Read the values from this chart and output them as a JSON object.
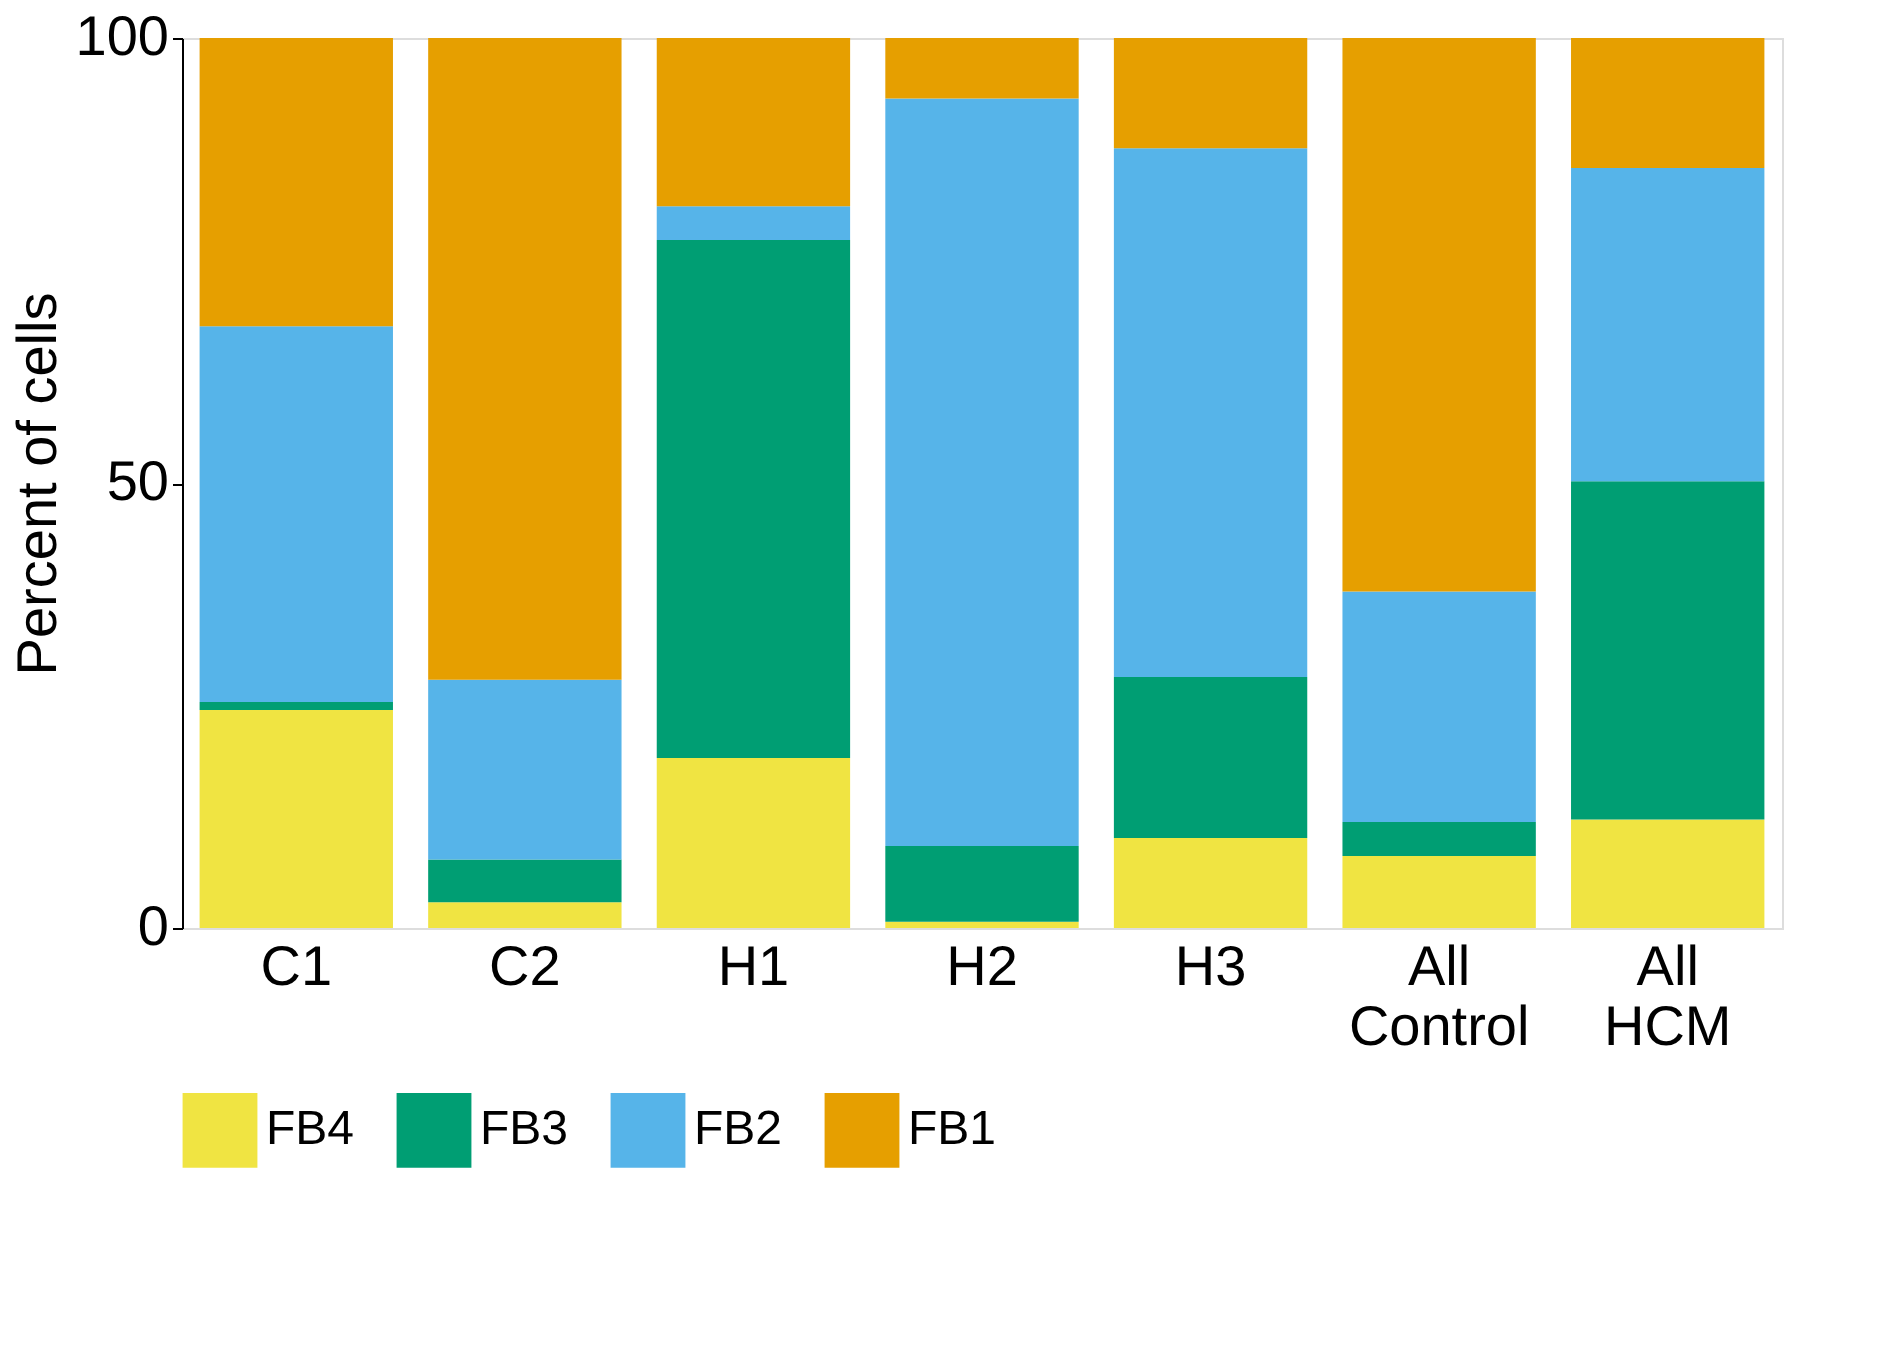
{
  "chart_data": {
    "type": "bar",
    "stacked": true,
    "ylabel": "Percent of cells",
    "categories": [
      "C1",
      "C2",
      "H1",
      "H2",
      "H3",
      "All Control",
      "All HCM"
    ],
    "series": [
      {
        "name": "FB4",
        "color": "#f0e442",
        "values": [
          24.5,
          2.9,
          19.1,
          0.7,
          10.1,
          8.1,
          12.2
        ]
      },
      {
        "name": "FB3",
        "color": "#009e73",
        "values": [
          0.9,
          4.8,
          58.2,
          8.5,
          18.1,
          3.8,
          38.0
        ]
      },
      {
        "name": "FB2",
        "color": "#56b4e9",
        "values": [
          42.2,
          20.2,
          3.8,
          84.0,
          59.4,
          25.9,
          35.2
        ]
      },
      {
        "name": "FB1",
        "color": "#e69f00",
        "values": [
          32.4,
          72.1,
          18.9,
          6.8,
          12.4,
          62.2,
          14.6
        ]
      }
    ],
    "ylim": [
      0,
      100
    ],
    "yticks": [
      0,
      50,
      100
    ],
    "grid": false,
    "legend": "bottom"
  }
}
